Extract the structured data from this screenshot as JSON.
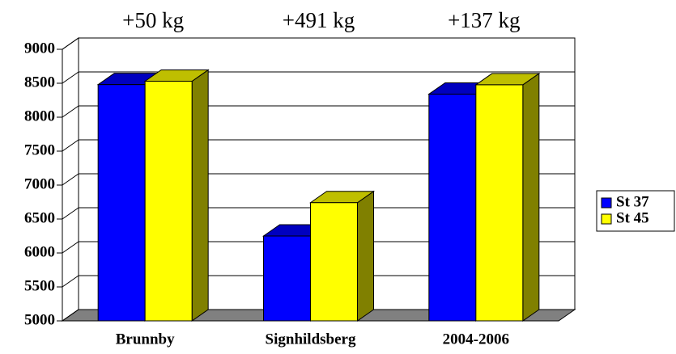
{
  "chart_data": {
    "type": "bar3d",
    "categories": [
      "Brunnby",
      "Signhildsberg",
      "2004-2006"
    ],
    "series": [
      {
        "name": "St 37",
        "color": "#0000ff",
        "values": [
          8480,
          6250,
          8340
        ]
      },
      {
        "name": "St 45",
        "color": "#ffff00",
        "values": [
          8530,
          6741,
          8477
        ]
      }
    ],
    "annotations": [
      "+50 kg",
      "+491 kg",
      "+137 kg"
    ],
    "ylim": [
      5000,
      9000
    ],
    "yticks": [
      5000,
      5500,
      6000,
      6500,
      7000,
      7500,
      8000,
      8500,
      9000
    ],
    "grid": true,
    "legend": "right"
  }
}
